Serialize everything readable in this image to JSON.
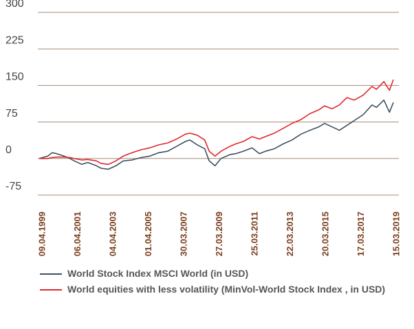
{
  "chart_data": {
    "type": "line",
    "x": [
      "09.04.1999",
      "01.10.1999",
      "01.01.2000",
      "01.04.2000",
      "01.09.2000",
      "01.01.2001",
      "01.04.2001",
      "01.09.2001",
      "01.01.2002",
      "01.07.2002",
      "01.10.2002",
      "01.03.2003",
      "01.08.2003",
      "01.01.2004",
      "01.07.2004",
      "01.01.2005",
      "01.07.2005",
      "01.01.2006",
      "01.07.2006",
      "01.01.2007",
      "01.07.2007",
      "01.10.2007",
      "01.03.2008",
      "01.08.2008",
      "01.11.2008",
      "01.03.2009",
      "01.07.2009",
      "01.01.2010",
      "01.05.2010",
      "01.10.2010",
      "01.04.2011",
      "01.09.2011",
      "01.01.2012",
      "01.07.2012",
      "01.01.2013",
      "01.07.2013",
      "01.01.2014",
      "01.07.2014",
      "01.01.2015",
      "01.05.2015",
      "01.10.2015",
      "01.03.2016",
      "01.08.2016",
      "01.01.2017",
      "01.07.2017",
      "01.01.2018",
      "01.04.2018",
      "01.09.2018",
      "24.12.2018",
      "15.03.2019"
    ],
    "series": [
      {
        "name": "World Stock Index MSCI World (in USD)",
        "color": "#3d5060",
        "values": [
          0,
          5,
          12,
          10,
          5,
          0,
          -5,
          -12,
          -8,
          -15,
          -20,
          -22,
          -15,
          -5,
          -3,
          2,
          5,
          12,
          15,
          25,
          35,
          38,
          28,
          20,
          -5,
          -15,
          0,
          8,
          10,
          15,
          22,
          10,
          15,
          20,
          30,
          38,
          50,
          58,
          65,
          72,
          65,
          58,
          68,
          78,
          90,
          110,
          105,
          120,
          95,
          115
        ]
      },
      {
        "name": "World equities with less volatility (MinVol-World Stock Index , in USD)",
        "color": "#e0262b",
        "values": [
          0,
          0,
          2,
          3,
          3,
          2,
          0,
          -3,
          -2,
          -5,
          -10,
          -12,
          -5,
          5,
          12,
          18,
          22,
          28,
          32,
          40,
          50,
          52,
          48,
          38,
          15,
          5,
          15,
          25,
          30,
          35,
          45,
          40,
          45,
          52,
          62,
          72,
          80,
          92,
          100,
          108,
          102,
          110,
          125,
          120,
          130,
          148,
          142,
          158,
          140,
          162
        ]
      }
    ],
    "xlim": [
      "09.04.1999",
      "15.03.2019"
    ],
    "xticks": [
      "09.04.1999",
      "06.04.2001",
      "04.04.2003",
      "01.04.2005",
      "30.03.2007",
      "27.03.2009",
      "25.03.2011",
      "22.03.2013",
      "20.03.2015",
      "17.03.2017",
      "15.03.2019"
    ],
    "ylim": [
      -75,
      300
    ],
    "yticks": [
      {
        "value": -75,
        "label": "-75"
      },
      0,
      75,
      150,
      225,
      300
    ],
    "grid": true
  }
}
